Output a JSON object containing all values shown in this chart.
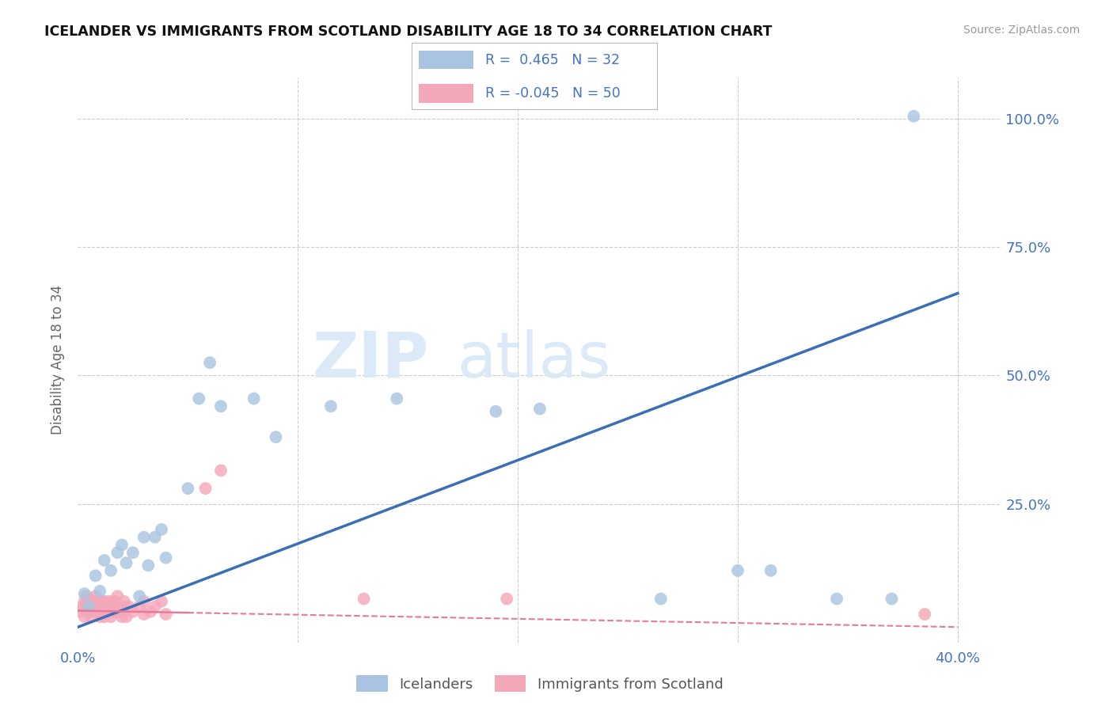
{
  "title": "ICELANDER VS IMMIGRANTS FROM SCOTLAND DISABILITY AGE 18 TO 34 CORRELATION CHART",
  "source": "Source: ZipAtlas.com",
  "ylabel": "Disability Age 18 to 34",
  "xlim": [
    0.0,
    0.42
  ],
  "ylim": [
    -0.02,
    1.08
  ],
  "legend_r_blue": "0.465",
  "legend_n_blue": "32",
  "legend_r_pink": "-0.045",
  "legend_n_pink": "50",
  "legend_label_blue": "Icelanders",
  "legend_label_pink": "Immigrants from Scotland",
  "blue_color": "#a8c4e0",
  "pink_color": "#f4a7b9",
  "blue_line_color": "#3a6fb5",
  "pink_line_color": "#e8799a",
  "watermark_zip": "ZIP",
  "watermark_atlas": "atlas",
  "blue_line_x0": 0.0,
  "blue_line_y0": 0.01,
  "blue_line_x1": 0.4,
  "blue_line_y1": 0.66,
  "pink_line_x0": 0.0,
  "pink_line_y0": 0.042,
  "pink_line_x1": 0.4,
  "pink_line_y1": 0.01,
  "icelanders_x": [
    0.003,
    0.005,
    0.008,
    0.01,
    0.012,
    0.015,
    0.018,
    0.02,
    0.022,
    0.025,
    0.028,
    0.03,
    0.032,
    0.035,
    0.038,
    0.04,
    0.05,
    0.055,
    0.06,
    0.065,
    0.08,
    0.09,
    0.115,
    0.145,
    0.19,
    0.21,
    0.265,
    0.3,
    0.315,
    0.345,
    0.37,
    0.38
  ],
  "icelanders_y": [
    0.075,
    0.05,
    0.11,
    0.08,
    0.14,
    0.12,
    0.155,
    0.17,
    0.135,
    0.155,
    0.07,
    0.185,
    0.13,
    0.185,
    0.2,
    0.145,
    0.28,
    0.455,
    0.525,
    0.44,
    0.455,
    0.38,
    0.44,
    0.455,
    0.43,
    0.435,
    0.065,
    0.12,
    0.12,
    0.065,
    0.065,
    1.005
  ],
  "scotland_x": [
    0.001,
    0.002,
    0.003,
    0.003,
    0.004,
    0.004,
    0.005,
    0.005,
    0.006,
    0.006,
    0.007,
    0.007,
    0.008,
    0.008,
    0.009,
    0.009,
    0.01,
    0.01,
    0.011,
    0.011,
    0.012,
    0.012,
    0.013,
    0.013,
    0.014,
    0.015,
    0.015,
    0.016,
    0.017,
    0.018,
    0.018,
    0.019,
    0.02,
    0.02,
    0.021,
    0.022,
    0.023,
    0.025,
    0.028,
    0.03,
    0.03,
    0.033,
    0.035,
    0.038,
    0.04,
    0.058,
    0.065,
    0.13,
    0.195,
    0.385
  ],
  "scotland_y": [
    0.04,
    0.05,
    0.03,
    0.06,
    0.05,
    0.07,
    0.04,
    0.06,
    0.03,
    0.05,
    0.04,
    0.06,
    0.05,
    0.07,
    0.04,
    0.06,
    0.03,
    0.05,
    0.04,
    0.06,
    0.03,
    0.05,
    0.04,
    0.06,
    0.05,
    0.03,
    0.06,
    0.04,
    0.06,
    0.05,
    0.07,
    0.04,
    0.03,
    0.05,
    0.06,
    0.03,
    0.05,
    0.04,
    0.05,
    0.035,
    0.06,
    0.04,
    0.05,
    0.06,
    0.035,
    0.28,
    0.315,
    0.065,
    0.065,
    0.035
  ]
}
